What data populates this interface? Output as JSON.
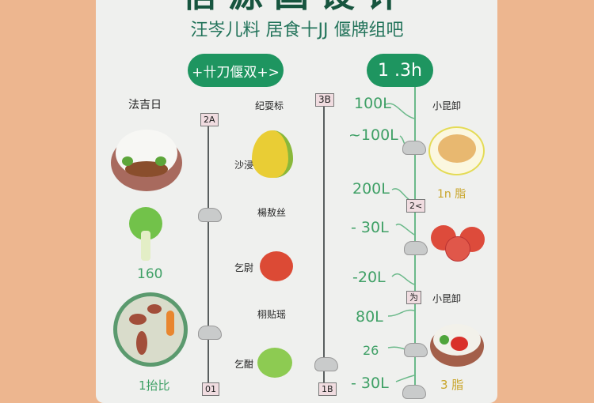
{
  "header": {
    "title": "信源国设计",
    "subtitle": "汪岑儿料 居食十JJ 偃牌组吧"
  },
  "buttons": {
    "left_pill": "+卄刀偃双+>",
    "right_pill": "1 .3h"
  },
  "left_column": {
    "heading": "法吉日",
    "value1": "160",
    "value2": "1抬比"
  },
  "timeline1": {
    "top_tag": "2A",
    "bottom_tag": "01"
  },
  "middle_column": {
    "heading": "纪耍标",
    "labels": [
      "沙浸垂",
      "楊敖丝",
      "乞尉",
      "栩贴瑶",
      "乞酣"
    ]
  },
  "timeline2": {
    "top_tag": "3B",
    "bottom_tag": "1B"
  },
  "green_timeline": {
    "values": [
      "100L",
      "~100L",
      "200L",
      "- 30L",
      "-20L",
      "80L",
      "26",
      "- 30L"
    ],
    "tags": [
      "2<",
      "为"
    ]
  },
  "right_column": {
    "heading1": "小昆卸",
    "value1": "1n 脂",
    "heading2": "小昆卸",
    "value2": "3 脂"
  },
  "colors": {
    "background": "#EDB68F",
    "panel": "#EFF0EE",
    "accent_green": "#1E9560",
    "title_green": "#17553F",
    "yellow_text": "#C9A52A"
  }
}
